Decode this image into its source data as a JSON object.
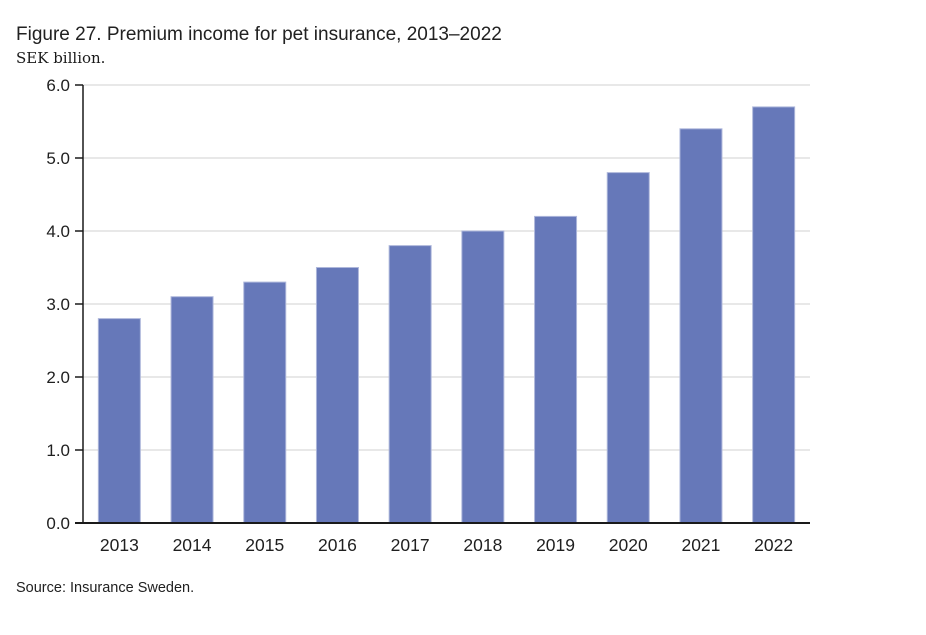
{
  "figure": {
    "title": "Figure 27. Premium income for pet insurance, 2013–2022",
    "unit_label": "SEK billion.",
    "source": "Source: Insurance Sweden."
  },
  "chart_data": {
    "type": "bar",
    "title": "Figure 27. Premium income for pet insurance, 2013–2022",
    "subtitle": "SEK billion.",
    "categories": [
      "2013",
      "2014",
      "2015",
      "2016",
      "2017",
      "2018",
      "2019",
      "2020",
      "2021",
      "2022"
    ],
    "values": [
      2.8,
      3.1,
      3.3,
      3.5,
      3.8,
      4.0,
      4.2,
      4.8,
      5.4,
      5.7
    ],
    "xlabel": "",
    "ylabel": "SEK billion.",
    "ylim": [
      0,
      6
    ],
    "ytick_step": 1.0,
    "ytick_decimals": 1,
    "grid": true,
    "legend": "none",
    "source": "Source: Insurance Sweden.",
    "colors": {
      "bar_fill": "#6678B9",
      "bar_edge": "#AEB7DB",
      "gridline": "#D9D9D9",
      "axis": "#1A1A1A",
      "tick_label": "#1F1F1F",
      "title_text": "#212121"
    }
  }
}
